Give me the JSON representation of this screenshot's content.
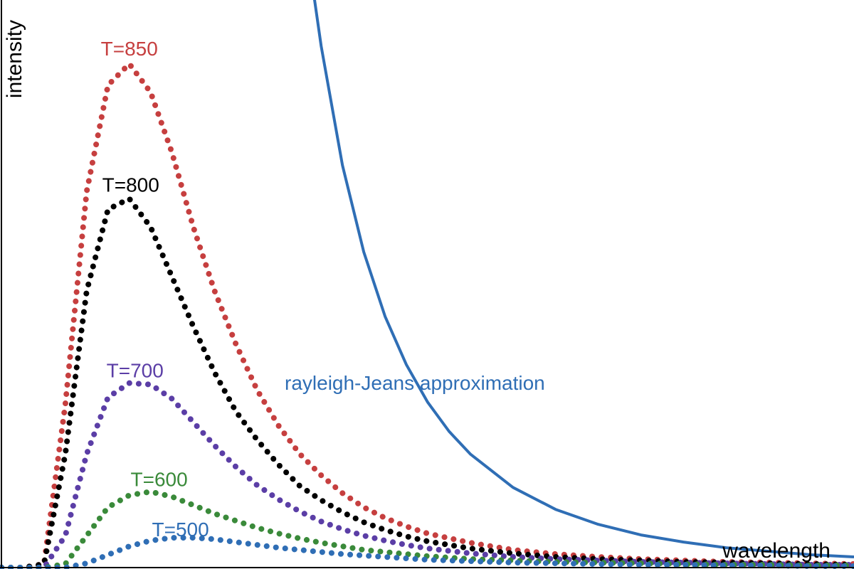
{
  "chart_data": {
    "type": "line",
    "title": "",
    "xlabel": "wavelength",
    "ylabel": "intensity",
    "xlim": [
      0,
      4
    ],
    "ylim": [
      0,
      8
    ],
    "grid": false,
    "legend": "none",
    "series": [
      {
        "name": "T=850",
        "color": "#c63f3f",
        "style": "dotted",
        "x": [
          0.0,
          0.1,
          0.2,
          0.3,
          0.4,
          0.5,
          0.6,
          0.7,
          0.8,
          0.9,
          1.0,
          1.1,
          1.2,
          1.3,
          1.4,
          1.5,
          1.6,
          1.7,
          1.8,
          1.9,
          2.0,
          2.2,
          2.4,
          2.6,
          2.8,
          3.0,
          3.2,
          3.4,
          3.6,
          3.8,
          4.0
        ],
        "y": [
          0.0,
          0.0,
          0.05,
          2.3,
          5.3,
          6.8,
          7.1,
          6.7,
          5.85,
          4.8,
          3.9,
          3.15,
          2.5,
          2.0,
          1.6,
          1.3,
          1.05,
          0.85,
          0.7,
          0.58,
          0.48,
          0.35,
          0.25,
          0.19,
          0.15,
          0.12,
          0.1,
          0.08,
          0.07,
          0.06,
          0.05
        ]
      },
      {
        "name": "T=800",
        "color": "#000000",
        "style": "dotted",
        "x": [
          0.0,
          0.1,
          0.2,
          0.3,
          0.4,
          0.5,
          0.6,
          0.7,
          0.8,
          0.9,
          1.0,
          1.1,
          1.2,
          1.3,
          1.4,
          1.5,
          1.6,
          1.7,
          1.8,
          1.9,
          2.0,
          2.2,
          2.4,
          2.6,
          2.8,
          3.0,
          3.2,
          3.4,
          3.6,
          3.8,
          4.0
        ],
        "y": [
          0.0,
          0.0,
          0.05,
          1.6,
          3.9,
          5.05,
          5.2,
          4.8,
          4.1,
          3.4,
          2.75,
          2.2,
          1.8,
          1.45,
          1.15,
          0.95,
          0.78,
          0.64,
          0.53,
          0.44,
          0.37,
          0.27,
          0.2,
          0.15,
          0.12,
          0.1,
          0.08,
          0.07,
          0.06,
          0.05,
          0.04
        ]
      },
      {
        "name": "T=700",
        "color": "#5b3ea6",
        "style": "dotted",
        "x": [
          0.0,
          0.1,
          0.2,
          0.3,
          0.4,
          0.5,
          0.6,
          0.7,
          0.8,
          0.9,
          1.0,
          1.1,
          1.2,
          1.3,
          1.4,
          1.5,
          1.6,
          1.7,
          1.8,
          1.9,
          2.0,
          2.2,
          2.4,
          2.6,
          2.8,
          3.0,
          3.2,
          3.4,
          3.6,
          3.8,
          4.0
        ],
        "y": [
          0.0,
          0.0,
          0.0,
          0.45,
          1.6,
          2.4,
          2.6,
          2.58,
          2.38,
          2.05,
          1.72,
          1.42,
          1.16,
          0.96,
          0.79,
          0.65,
          0.54,
          0.45,
          0.38,
          0.32,
          0.27,
          0.2,
          0.15,
          0.12,
          0.1,
          0.08,
          0.07,
          0.06,
          0.05,
          0.04,
          0.04
        ]
      },
      {
        "name": "T=600",
        "color": "#3a8a3a",
        "style": "dotted",
        "x": [
          0.0,
          0.1,
          0.2,
          0.3,
          0.4,
          0.5,
          0.6,
          0.7,
          0.8,
          0.9,
          1.0,
          1.1,
          1.2,
          1.3,
          1.4,
          1.5,
          1.6,
          1.7,
          1.8,
          1.9,
          2.0,
          2.2,
          2.4,
          2.6,
          2.8,
          3.0,
          3.2,
          3.4,
          3.6,
          3.8,
          4.0
        ],
        "y": [
          0.0,
          0.0,
          0.0,
          0.05,
          0.45,
          0.85,
          1.02,
          1.07,
          1.0,
          0.88,
          0.76,
          0.66,
          0.56,
          0.48,
          0.41,
          0.35,
          0.3,
          0.25,
          0.22,
          0.19,
          0.16,
          0.12,
          0.1,
          0.08,
          0.07,
          0.06,
          0.05,
          0.04,
          0.04,
          0.03,
          0.03
        ]
      },
      {
        "name": "T=500",
        "color": "#2f6eb5",
        "style": "dotted",
        "x": [
          0.0,
          0.1,
          0.2,
          0.3,
          0.4,
          0.5,
          0.6,
          0.7,
          0.8,
          0.9,
          1.0,
          1.1,
          1.2,
          1.3,
          1.4,
          1.5,
          1.6,
          1.7,
          1.8,
          1.9,
          2.0,
          2.2,
          2.4,
          2.6,
          2.8,
          3.0,
          3.2,
          3.4,
          3.6,
          3.8,
          4.0
        ],
        "y": [
          0.0,
          0.0,
          0.0,
          0.0,
          0.06,
          0.18,
          0.3,
          0.38,
          0.42,
          0.42,
          0.4,
          0.36,
          0.32,
          0.28,
          0.25,
          0.22,
          0.19,
          0.17,
          0.15,
          0.13,
          0.11,
          0.09,
          0.07,
          0.06,
          0.05,
          0.04,
          0.04,
          0.03,
          0.03,
          0.02,
          0.02
        ]
      },
      {
        "name": "rayleigh-Jeans approximation",
        "color": "#2f6eb5",
        "style": "solid",
        "x": [
          1.45,
          1.5,
          1.6,
          1.7,
          1.8,
          1.9,
          2.0,
          2.1,
          2.2,
          2.4,
          2.6,
          2.8,
          3.0,
          3.2,
          3.4,
          3.6,
          3.8,
          4.0
        ],
        "y": [
          8.4,
          7.35,
          5.67,
          4.45,
          3.54,
          2.86,
          2.33,
          1.92,
          1.6,
          1.13,
          0.82,
          0.61,
          0.46,
          0.36,
          0.28,
          0.23,
          0.18,
          0.15
        ]
      }
    ]
  }
}
